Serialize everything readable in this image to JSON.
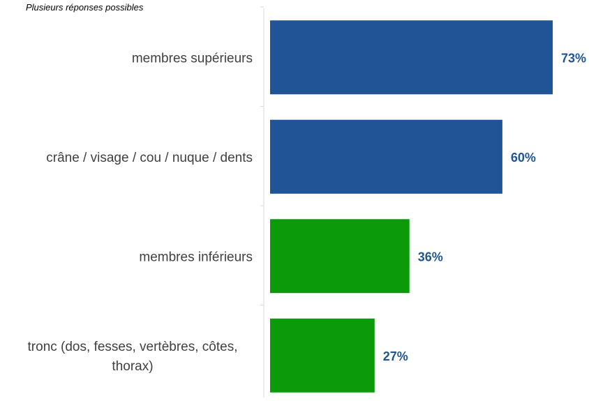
{
  "note": "Plusieurs réponses possibles",
  "chart_data": {
    "type": "bar",
    "orientation": "horizontal",
    "categories": [
      [
        "membres supérieurs"
      ],
      [
        "crâne / visage / cou / nuque / dents"
      ],
      [
        "membres inférieurs"
      ],
      [
        "tronc (dos, fesses, vertèbres, côtes,",
        "thorax)"
      ]
    ],
    "values": [
      73,
      60,
      36,
      27
    ],
    "value_labels": [
      "73%",
      "60%",
      "36%",
      "27%"
    ],
    "bar_colors": [
      "#1f5597",
      "#1f5597",
      "#0a9a0a",
      "#0a9a0a"
    ],
    "label_color": "#1f5597",
    "xlim": [
      0,
      73
    ],
    "grid": false,
    "legend": "none"
  }
}
